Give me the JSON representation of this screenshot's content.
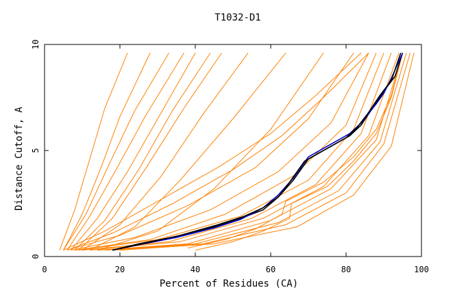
{
  "chart_data": {
    "type": "line",
    "title": "T1032-D1",
    "xlabel": "Percent of Residues (CA)",
    "ylabel": "Distance Cutoff, A",
    "xlim": [
      0,
      100
    ],
    "ylim": [
      0,
      10
    ],
    "x_ticks": [
      0,
      20,
      40,
      60,
      80,
      100
    ],
    "x_tick_labels": [
      "0",
      "20",
      "40",
      "60",
      "80",
      "100"
    ],
    "y_ticks": [
      0,
      5,
      10
    ],
    "y_tick_labels": [
      "0",
      "5",
      "10"
    ],
    "grid": false,
    "legend": "none",
    "bundle_color": "#ff8000",
    "highlight_colors": [
      "#000000",
      "#0000cc"
    ],
    "series": [
      {
        "x": [
          4,
          8,
          12,
          16,
          22
        ],
        "y": [
          0.3,
          2.2,
          4.6,
          7.0,
          9.6
        ]
      },
      {
        "x": [
          5,
          10,
          15,
          20,
          28
        ],
        "y": [
          0.3,
          2.0,
          4.2,
          6.6,
          9.6
        ]
      },
      {
        "x": [
          5,
          11,
          17,
          24,
          33
        ],
        "y": [
          0.3,
          2.0,
          4.3,
          6.9,
          9.6
        ]
      },
      {
        "x": [
          6,
          12,
          19,
          27,
          37
        ],
        "y": [
          0.3,
          1.9,
          4.1,
          6.7,
          9.6
        ]
      },
      {
        "x": [
          7,
          14,
          22,
          31,
          40
        ],
        "y": [
          0.3,
          1.8,
          4.0,
          6.8,
          9.6
        ]
      },
      {
        "x": [
          8,
          16,
          25,
          34,
          44
        ],
        "y": [
          0.3,
          1.7,
          4.1,
          6.9,
          9.6
        ]
      },
      {
        "x": [
          9,
          18,
          27,
          37,
          47
        ],
        "y": [
          0.3,
          1.8,
          4.2,
          7.0,
          9.6
        ]
      },
      {
        "x": [
          10,
          20,
          31,
          42,
          54
        ],
        "y": [
          0.3,
          1.5,
          3.8,
          6.7,
          9.6
        ]
      },
      {
        "x": [
          12,
          24,
          36,
          50,
          64
        ],
        "y": [
          0.3,
          1.4,
          3.6,
          6.5,
          9.6
        ]
      },
      {
        "x": [
          14,
          30,
          45,
          60,
          74
        ],
        "y": [
          0.3,
          1.2,
          3.2,
          6.0,
          9.6
        ]
      },
      {
        "x": [
          6,
          20,
          38,
          56,
          70,
          82
        ],
        "y": [
          0.3,
          1.0,
          2.4,
          4.2,
          6.5,
          9.6
        ]
      },
      {
        "x": [
          7,
          24,
          44,
          62,
          76,
          86
        ],
        "y": [
          0.3,
          0.9,
          2.2,
          4.0,
          6.3,
          9.6
        ]
      },
      {
        "x": [
          8,
          28,
          48,
          66,
          80,
          88
        ],
        "y": [
          0.3,
          0.8,
          2.0,
          3.8,
          6.2,
          9.6
        ]
      },
      {
        "x": [
          9,
          30,
          52,
          70,
          82,
          90
        ],
        "y": [
          0.3,
          0.8,
          1.9,
          3.6,
          6.0,
          9.6
        ]
      },
      {
        "x": [
          10,
          33,
          55,
          72,
          84,
          92
        ],
        "y": [
          0.3,
          0.7,
          1.8,
          3.4,
          5.8,
          9.6
        ]
      },
      {
        "x": [
          12,
          36,
          58,
          74,
          86,
          94
        ],
        "y": [
          0.3,
          0.7,
          1.8,
          3.3,
          5.7,
          9.6
        ]
      },
      {
        "x": [
          14,
          38,
          60,
          76,
          88,
          95
        ],
        "y": [
          0.3,
          0.6,
          1.7,
          3.2,
          5.5,
          9.6
        ]
      },
      {
        "x": [
          16,
          40,
          62,
          78,
          89,
          96
        ],
        "y": [
          0.3,
          0.6,
          1.6,
          3.1,
          5.4,
          9.6
        ]
      },
      {
        "x": [
          18,
          42,
          64,
          80,
          90,
          97
        ],
        "y": [
          0.3,
          0.6,
          1.5,
          3.0,
          5.3,
          9.6
        ]
      },
      {
        "x": [
          20,
          45,
          67,
          82,
          92,
          98
        ],
        "y": [
          0.3,
          0.6,
          1.4,
          2.9,
          5.2,
          9.6
        ]
      },
      {
        "x": [
          5,
          16,
          30,
          46,
          60,
          72,
          84
        ],
        "y": [
          0.3,
          1.2,
          2.6,
          4.2,
          5.8,
          7.6,
          9.6
        ]
      },
      {
        "x": [
          6,
          18,
          34,
          50,
          63,
          74,
          86
        ],
        "y": [
          0.3,
          1.1,
          2.5,
          4.1,
          5.7,
          7.5,
          9.6
        ]
      },
      {
        "x": [
          40,
          50,
          58,
          65,
          65.5,
          75,
          82,
          88,
          92,
          95
        ],
        "y": [
          0.3,
          0.7,
          1.2,
          1.8,
          2.5,
          3.3,
          4.5,
          5.8,
          7.5,
          9.6
        ]
      },
      {
        "x": [
          38,
          48,
          56,
          63,
          64,
          74,
          82,
          88,
          92,
          95
        ],
        "y": [
          0.4,
          0.8,
          1.3,
          2.0,
          2.6,
          3.5,
          4.7,
          6.0,
          7.6,
          9.6
        ]
      }
    ],
    "highlight_series": [
      {
        "x": [
          18,
          25,
          35,
          45,
          52,
          58,
          62,
          66,
          70,
          76,
          81,
          84,
          87,
          90,
          93,
          95
        ],
        "y": [
          0.3,
          0.6,
          0.95,
          1.4,
          1.8,
          2.2,
          2.8,
          3.6,
          4.6,
          5.2,
          5.7,
          6.2,
          7.0,
          7.8,
          8.5,
          9.6
        ]
      },
      {
        "x": [
          18,
          25,
          35,
          45,
          52,
          58,
          62,
          66,
          70,
          76,
          81,
          84,
          88,
          90,
          92,
          95
        ],
        "y": [
          0.3,
          0.55,
          0.9,
          1.35,
          1.75,
          2.3,
          2.9,
          3.7,
          4.7,
          5.3,
          5.8,
          6.3,
          7.2,
          7.7,
          8.4,
          9.6
        ]
      },
      {
        "x": [
          18,
          26,
          36,
          46,
          53,
          58,
          62,
          65,
          69,
          75,
          80,
          83,
          86,
          89,
          92,
          94.5
        ],
        "y": [
          0.3,
          0.6,
          1.0,
          1.5,
          1.9,
          2.3,
          2.8,
          3.5,
          4.5,
          5.1,
          5.6,
          6.1,
          6.8,
          7.6,
          8.3,
          9.6
        ]
      }
    ]
  }
}
